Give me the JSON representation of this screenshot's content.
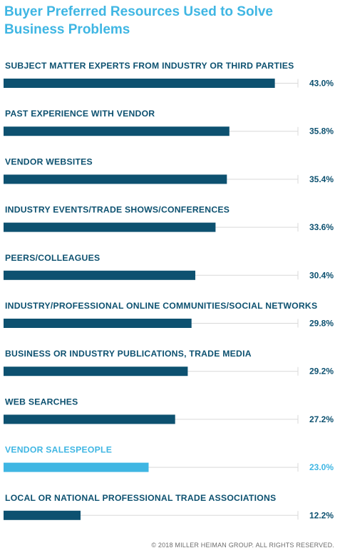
{
  "chart_data": {
    "type": "bar",
    "orientation": "horizontal",
    "title": "Buyer Preferred Resources Used to Solve Business Problems",
    "categories": [
      "SUBJECT MATTER EXPERTS FROM INDUSTRY OR THIRD PARTIES",
      "PAST EXPERIENCE WITH VENDOR",
      "VENDOR WEBSITES",
      "INDUSTRY EVENTS/TRADE SHOWS/CONFERENCES",
      "PEERS/COLLEAGUES",
      "INDUSTRY/PROFESSIONAL ONLINE COMMUNITIES/SOCIAL NETWORKS",
      "BUSINESS OR INDUSTRY PUBLICATIONS, TRADE MEDIA",
      "WEB SEARCHES",
      "VENDOR SALESPEOPLE",
      "LOCAL OR NATIONAL PROFESSIONAL TRADE ASSOCIATIONS"
    ],
    "values": [
      43.0,
      35.8,
      35.4,
      33.6,
      30.4,
      29.8,
      29.2,
      27.2,
      23.0,
      12.2
    ],
    "value_labels": [
      "43.0%",
      "35.8%",
      "35.4%",
      "33.6%",
      "30.4%",
      "29.8%",
      "29.2%",
      "27.2%",
      "23.0%",
      "12.2%"
    ],
    "highlighted_index": 8,
    "xlim": [
      0,
      46
    ],
    "colors": {
      "bar": "#0d5170",
      "highlight": "#3fb6e3",
      "label": "#0d5170",
      "track": "#d9d9d9"
    }
  },
  "footer": {
    "copyright": "© 2018 MILLER HEIMAN GROUP. ALL RIGHTS RESERVED."
  }
}
